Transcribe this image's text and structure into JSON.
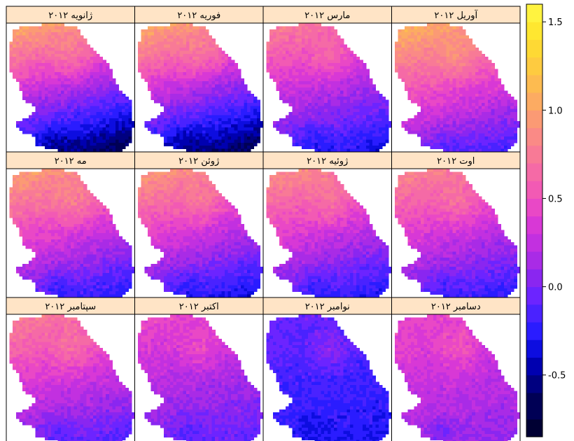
{
  "chart_data": {
    "type": "heatmap",
    "layout": {
      "columns": 4,
      "rows": 3
    },
    "panels": [
      {
        "label": "ژانویه ۲۰۱۲",
        "north_value": 1.0,
        "south_value": -0.7
      },
      {
        "label": "فوریه ۲۰۱۲",
        "north_value": 1.0,
        "south_value": -0.7
      },
      {
        "label": "مارس ۲۰۱۲",
        "north_value": 0.75,
        "south_value": -0.35
      },
      {
        "label": "آوریل ۲۰۱۲",
        "north_value": 1.05,
        "south_value": -0.2
      },
      {
        "label": "مه ۲۰۱۲",
        "north_value": 0.95,
        "south_value": -0.3
      },
      {
        "label": "ژوئن ۲۰۱۲",
        "north_value": 0.9,
        "south_value": -0.35
      },
      {
        "label": "ژوئیه ۲۰۱۲",
        "north_value": 0.85,
        "south_value": -0.3
      },
      {
        "label": "اوت ۲۰۱۲",
        "north_value": 0.8,
        "south_value": -0.25
      },
      {
        "label": "سپتامبر ۲۰۱۲",
        "north_value": 0.75,
        "south_value": -0.15
      },
      {
        "label": "اکتبر ۲۰۱۲",
        "north_value": 0.45,
        "south_value": -0.1
      },
      {
        "label": "نوامبر ۲۰۱۲",
        "north_value": -0.05,
        "south_value": -0.3
      },
      {
        "label": "دسامبر ۲۰۱۲",
        "north_value": 0.45,
        "south_value": 0.05
      }
    ],
    "colorbar": {
      "ticks": [
        1.5,
        1.0,
        0.5,
        0.0,
        -0.5
      ],
      "tick_labels": [
        "1.5",
        "1.0",
        "0.5",
        "0.0",
        "-0.5"
      ],
      "range": [
        -0.85,
        1.6
      ],
      "breaks": [
        -0.85,
        -0.75,
        -0.6,
        -0.5,
        -0.4,
        -0.3,
        -0.2,
        -0.1,
        0.0,
        0.1,
        0.2,
        0.3,
        0.4,
        0.5,
        0.6,
        0.7,
        0.8,
        0.9,
        1.0,
        1.1,
        1.2,
        1.3,
        1.4,
        1.5,
        1.6
      ],
      "colors": [
        "#000033",
        "#000055",
        "#000080",
        "#0000b0",
        "#0d0de0",
        "#2a1cff",
        "#4a22ff",
        "#6c24ff",
        "#8a26f0",
        "#a92be6",
        "#c230e0",
        "#d838d6",
        "#e948c6",
        "#f25ab4",
        "#f56aa6",
        "#f87a96",
        "#fa8a86",
        "#fb9a74",
        "#fcab62",
        "#fdbb50",
        "#fecb40",
        "#fed934",
        "#ffe730",
        "#fff340"
      ]
    },
    "strip_color": "#ffe4c6"
  }
}
